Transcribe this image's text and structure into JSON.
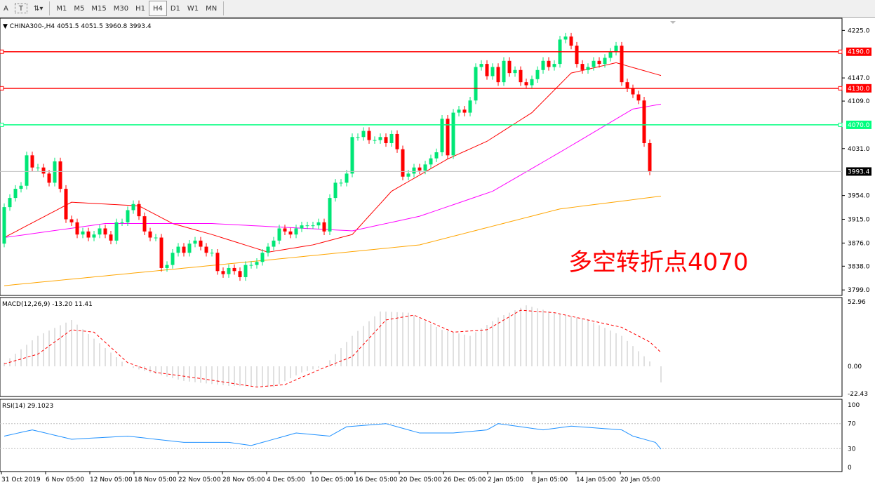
{
  "toolbar": {
    "tools": [
      {
        "icon": "text-icon",
        "label": "A"
      },
      {
        "icon": "text-label-icon",
        "label": "T"
      },
      {
        "icon": "arrows-icon",
        "label": ""
      }
    ],
    "timeframes": [
      "M1",
      "M5",
      "M15",
      "M30",
      "H1",
      "H4",
      "D1",
      "W1",
      "MN"
    ],
    "active": "H4"
  },
  "chart_data": [
    {
      "type": "candlestick",
      "header": "CHINA300-,H4  4051.5 4051.5 3960.8 3993.4",
      "symbol": "CHINA300-",
      "timeframe": "H4",
      "ohlc_last": [
        4051.5,
        4051.5,
        3960.8,
        3993.4
      ],
      "ylim": [
        3790,
        4245
      ],
      "yticks": [
        "4225.0",
        "4147.0",
        "4109.0",
        "4031.0",
        "3954.0",
        "3915.0",
        "3876.0",
        "3838.0",
        "3799.0"
      ],
      "closes": [
        3935,
        3950,
        3965,
        3970,
        4020,
        4000,
        4000,
        3990,
        3975,
        4010,
        3965,
        3915,
        3910,
        3890,
        3895,
        3885,
        3890,
        3900,
        3890,
        3880,
        3910,
        3910,
        3930,
        3940,
        3920,
        3895,
        3885,
        3885,
        3835,
        3840,
        3860,
        3870,
        3860,
        3875,
        3880,
        3870,
        3860,
        3860,
        3830,
        3825,
        3835,
        3830,
        3820,
        3840,
        3840,
        3845,
        3860,
        3870,
        3880,
        3900,
        3895,
        3890,
        3900,
        3905,
        3905,
        3905,
        3910,
        3895,
        3950,
        3975,
        3975,
        3990,
        4050,
        4050,
        4060,
        4045,
        4045,
        4050,
        4040,
        4055,
        4030,
        3985,
        3990,
        4000,
        3995,
        4005,
        4015,
        4025,
        4080,
        4020,
        4090,
        4095,
        4090,
        4110,
        4165,
        4170,
        4150,
        4165,
        4140,
        4175,
        4155,
        4160,
        4140,
        4135,
        4145,
        4160,
        4175,
        4165,
        4170,
        4210,
        4215,
        4200,
        4170,
        4160,
        4165,
        4175,
        4170,
        4180,
        4190,
        4200,
        4140,
        4130,
        4120,
        4110,
        4040,
        3993.4
      ],
      "first_open": 3875,
      "moving_averages": [
        {
          "color": "#ff0000",
          "points": [
            [
              0,
              3885
            ],
            [
              12,
              3943
            ],
            [
              24,
              3937
            ],
            [
              30,
              3908
            ],
            [
              37,
              3890
            ],
            [
              47,
              3861
            ],
            [
              55,
              3873
            ],
            [
              62,
              3890
            ],
            [
              69,
              3961
            ],
            [
              79,
              4014
            ],
            [
              86,
              4043
            ],
            [
              94,
              4090
            ],
            [
              101,
              4155
            ],
            [
              109,
              4172
            ],
            [
              117,
              4151
            ]
          ]
        },
        {
          "color": "#ff00ff",
          "points": [
            [
              0,
              3885
            ],
            [
              18,
              3908
            ],
            [
              37,
              3908
            ],
            [
              62,
              3896
            ],
            [
              74,
              3920
            ],
            [
              87,
              3961
            ],
            [
              99,
              4025
            ],
            [
              112,
              4096
            ],
            [
              117,
              4104
            ]
          ]
        },
        {
          "color": "#ffa500",
          "points": [
            [
              0,
              3806
            ],
            [
              49,
              3850
            ],
            [
              74,
              3873
            ],
            [
              99,
              3932
            ],
            [
              117,
              3953
            ]
          ]
        }
      ],
      "levels": [
        {
          "value": 4190.0,
          "label": "4190.0",
          "color": "#ff0000"
        },
        {
          "value": 4130.0,
          "label": "4130.0",
          "color": "#ff0000"
        },
        {
          "value": 4070.0,
          "label": "4070.0",
          "color": "#00ff7f"
        }
      ],
      "current_price": "3993.4",
      "annotation": {
        "text": "多空转折点4070",
        "color": "#ff0000"
      },
      "xlabels": [
        "31 Oct 2019",
        "6 Nov 05:00",
        "12 Nov 05:00",
        "18 Nov 05:00",
        "22 Nov 05:00",
        "28 Nov 05:00",
        "4 Dec 05:00",
        "10 Dec 05:00",
        "16 Dec 05:00",
        "20 Dec 05:00",
        "26 Dec 05:00",
        "2 Jan 05:00",
        "8 Jan 05:00",
        "14 Jan 05:00",
        "20 Jan 05:00"
      ],
      "colors": {
        "bull": "#00e676",
        "bear": "#ff0000"
      }
    },
    {
      "type": "bar+line",
      "header": "MACD(12,26,9) -13.20 11.41",
      "ylim": [
        -22.43,
        52.96
      ],
      "yticks": [
        "52.96",
        "0.00",
        "-22.43"
      ],
      "histogram": [
        [
          0,
          3
        ],
        [
          6,
          25
        ],
        [
          12,
          38
        ],
        [
          18,
          15
        ],
        [
          22,
          0
        ],
        [
          26,
          -5
        ],
        [
          32,
          -12
        ],
        [
          40,
          -16
        ],
        [
          48,
          -17
        ],
        [
          53,
          -5
        ],
        [
          57,
          0
        ],
        [
          62,
          25
        ],
        [
          67,
          45
        ],
        [
          72,
          44
        ],
        [
          78,
          30
        ],
        [
          83,
          25
        ],
        [
          88,
          40
        ],
        [
          93,
          50
        ],
        [
          98,
          44
        ],
        [
          104,
          38
        ],
        [
          110,
          25
        ],
        [
          115,
          4
        ],
        [
          116,
          0
        ],
        [
          117,
          -13.2
        ]
      ],
      "signal": [
        [
          0,
          2
        ],
        [
          6,
          10
        ],
        [
          12,
          30
        ],
        [
          16,
          28
        ],
        [
          22,
          3
        ],
        [
          27,
          -5
        ],
        [
          35,
          -10
        ],
        [
          45,
          -17
        ],
        [
          50,
          -15
        ],
        [
          56,
          -3
        ],
        [
          62,
          8
        ],
        [
          68,
          38
        ],
        [
          73,
          42
        ],
        [
          80,
          28
        ],
        [
          86,
          30
        ],
        [
          92,
          46
        ],
        [
          98,
          44
        ],
        [
          104,
          38
        ],
        [
          110,
          32
        ],
        [
          115,
          20
        ],
        [
          117,
          11.41
        ]
      ]
    },
    {
      "type": "line",
      "header": "RSI(14) 29.1023",
      "ylim": [
        0,
        100
      ],
      "yticks": [
        "100",
        "70",
        "30",
        "0"
      ],
      "levels": [
        70,
        30
      ],
      "color": "#1e90ff",
      "points": [
        [
          0,
          50
        ],
        [
          5,
          60
        ],
        [
          12,
          45
        ],
        [
          22,
          50
        ],
        [
          27,
          45
        ],
        [
          32,
          40
        ],
        [
          40,
          40
        ],
        [
          44,
          35
        ],
        [
          52,
          55
        ],
        [
          58,
          50
        ],
        [
          61,
          65
        ],
        [
          68,
          70
        ],
        [
          74,
          55
        ],
        [
          80,
          55
        ],
        [
          86,
          60
        ],
        [
          88,
          70
        ],
        [
          96,
          60
        ],
        [
          101,
          66
        ],
        [
          110,
          60
        ],
        [
          112,
          50
        ],
        [
          116,
          40
        ],
        [
          117,
          29.1
        ]
      ]
    }
  ]
}
